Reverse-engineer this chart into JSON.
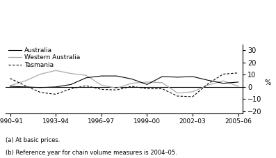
{
  "footnote1": "(a) At basic prices.",
  "footnote2": "(b) Reference year for chain volume measures is 2004–05.",
  "ylabel": "%",
  "ylim": [
    -22,
    35
  ],
  "yticks": [
    -20,
    -10,
    0,
    10,
    20,
    30
  ],
  "x_labels": [
    "1990–91",
    "1993–94",
    "1996–97",
    "1999–00",
    "2002–03",
    "2005–06"
  ],
  "x_positions": [
    0,
    3,
    6,
    9,
    12,
    15
  ],
  "australia": [
    0.5,
    0.0,
    -0.5,
    0.0,
    2.0,
    7.5,
    9.0,
    9.0,
    6.5,
    2.0,
    8.5,
    8.0,
    8.5,
    5.5,
    3.0,
    4.0
  ],
  "western_australia": [
    1.0,
    5.0,
    10.5,
    13.5,
    11.0,
    9.5,
    1.5,
    -1.0,
    3.0,
    4.0,
    3.5,
    -5.0,
    -4.0,
    1.5,
    5.0,
    0.5
  ],
  "tasmania": [
    7.0,
    1.0,
    -4.5,
    -6.0,
    -1.5,
    1.0,
    -2.0,
    -2.5,
    0.5,
    -1.5,
    -1.5,
    -7.5,
    -8.0,
    2.5,
    10.5,
    11.5
  ],
  "australia_color": "#000000",
  "wa_color": "#aaaaaa",
  "tasmania_color": "#000000",
  "background_color": "#ffffff",
  "legend_australia": "Australia",
  "legend_wa": "Western Australia",
  "legend_tasmania": "Tasmania"
}
